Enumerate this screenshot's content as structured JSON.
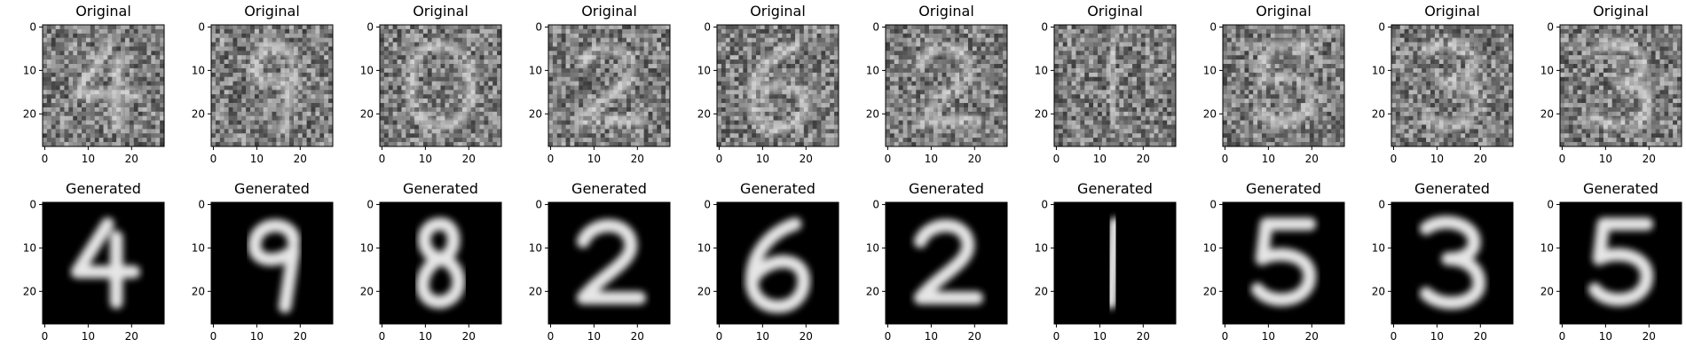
{
  "rows": [
    {
      "title": "Original",
      "style": "noisy",
      "colors": {
        "background": "#808080",
        "stroke": "#e8e8e8"
      }
    },
    {
      "title": "Generated",
      "style": "clean",
      "colors": {
        "background": "#000000",
        "stroke": "#ffffff"
      }
    }
  ],
  "digits": {
    "original": [
      4,
      9,
      0,
      2,
      6,
      2,
      1,
      5,
      3,
      3
    ],
    "generated": [
      4,
      9,
      8,
      2,
      6,
      2,
      1,
      5,
      3,
      5
    ]
  },
  "axes": {
    "x_ticks": [
      "0",
      "10",
      "20"
    ],
    "y_ticks": [
      "0",
      "10",
      "20"
    ],
    "x_tick_values": [
      0,
      10,
      20
    ],
    "y_tick_values": [
      0,
      10,
      20
    ],
    "range": [
      -0.5,
      27.5
    ]
  }
}
